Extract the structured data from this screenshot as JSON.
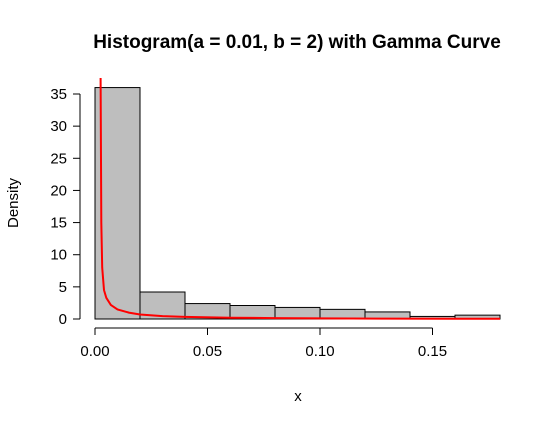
{
  "chart_data": {
    "type": "bar",
    "title": "Histogram(a = 0.01, b = 2) with Gamma Curve",
    "xlabel": "x",
    "ylabel": "Density",
    "xlim": [
      0.0,
      0.18
    ],
    "ylim": [
      0,
      35
    ],
    "x_ticks": [
      0.0,
      0.05,
      0.1,
      0.15
    ],
    "x_tick_labels": [
      "0.00",
      "0.05",
      "0.10",
      "0.15"
    ],
    "y_ticks": [
      0,
      5,
      10,
      15,
      20,
      25,
      30,
      35
    ],
    "y_tick_labels": [
      "0",
      "5",
      "10",
      "15",
      "20",
      "25",
      "30",
      "35"
    ],
    "bins": [
      {
        "x0": 0.0,
        "x1": 0.02,
        "density": 36.0
      },
      {
        "x0": 0.02,
        "x1": 0.04,
        "density": 4.2
      },
      {
        "x0": 0.04,
        "x1": 0.06,
        "density": 2.4
      },
      {
        "x0": 0.06,
        "x1": 0.08,
        "density": 2.1
      },
      {
        "x0": 0.08,
        "x1": 0.1,
        "density": 1.8
      },
      {
        "x0": 0.1,
        "x1": 0.12,
        "density": 1.5
      },
      {
        "x0": 0.12,
        "x1": 0.14,
        "density": 1.1
      },
      {
        "x0": 0.14,
        "x1": 0.16,
        "density": 0.4
      },
      {
        "x0": 0.16,
        "x1": 0.18,
        "density": 0.6
      }
    ],
    "curve": {
      "type": "gamma-density",
      "color": "#ff0000",
      "points": [
        {
          "x": 0.0025,
          "y": 38
        },
        {
          "x": 0.0028,
          "y": 15
        },
        {
          "x": 0.0032,
          "y": 8.0
        },
        {
          "x": 0.004,
          "y": 4.5
        },
        {
          "x": 0.005,
          "y": 3.3
        },
        {
          "x": 0.007,
          "y": 2.2
        },
        {
          "x": 0.01,
          "y": 1.5
        },
        {
          "x": 0.015,
          "y": 1.0
        },
        {
          "x": 0.02,
          "y": 0.7
        },
        {
          "x": 0.03,
          "y": 0.45
        },
        {
          "x": 0.04,
          "y": 0.32
        },
        {
          "x": 0.06,
          "y": 0.2
        },
        {
          "x": 0.08,
          "y": 0.14
        },
        {
          "x": 0.1,
          "y": 0.1
        },
        {
          "x": 0.13,
          "y": 0.07
        },
        {
          "x": 0.16,
          "y": 0.05
        },
        {
          "x": 0.18,
          "y": 0.04
        }
      ]
    },
    "bar_color": "#bebebe",
    "grid": false
  }
}
